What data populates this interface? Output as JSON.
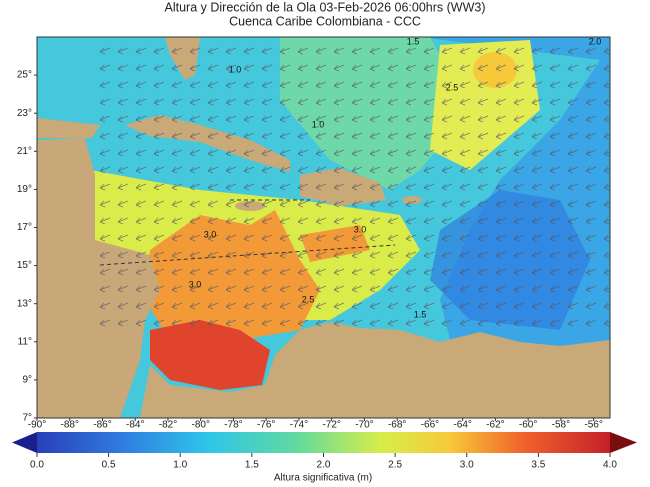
{
  "map": {
    "title": "Altura y Dirección de la Ola 03-Feb-2026 06:00hrs (WW3)",
    "subtitle": "Cuenca Caribe Colombiana - CCC",
    "lat_range": [
      7,
      27
    ],
    "lon_range": [
      -90,
      -55
    ],
    "lat_ticks": [
      {
        "value": 25,
        "label": "25°"
      },
      {
        "value": 23,
        "label": "23°"
      },
      {
        "value": 21,
        "label": "21°"
      },
      {
        "value": 19,
        "label": "19°"
      },
      {
        "value": 17,
        "label": "17°"
      },
      {
        "value": 15,
        "label": "15°"
      },
      {
        "value": 13,
        "label": "13°"
      },
      {
        "value": 11,
        "label": "11°"
      },
      {
        "value": 9,
        "label": "9°"
      },
      {
        "value": 7,
        "label": "7°"
      }
    ],
    "lon_ticks": [
      {
        "value": -90,
        "label": "-90°"
      },
      {
        "value": -88,
        "label": "-88°"
      },
      {
        "value": -86,
        "label": "-86°"
      },
      {
        "value": -84,
        "label": "-84°"
      },
      {
        "value": -82,
        "label": "-82°"
      },
      {
        "value": -80,
        "label": "-80°"
      },
      {
        "value": -78,
        "label": "-78°"
      },
      {
        "value": -76,
        "label": "-76°"
      },
      {
        "value": -74,
        "label": "-74°"
      },
      {
        "value": -72,
        "label": "-72°"
      },
      {
        "value": -70,
        "label": "-70°"
      },
      {
        "value": -68,
        "label": "-68°"
      },
      {
        "value": -66,
        "label": "-66°"
      },
      {
        "value": -64,
        "label": "-64°"
      },
      {
        "value": -62,
        "label": "-62°"
      },
      {
        "value": -60,
        "label": "-60°"
      },
      {
        "value": -58,
        "label": "-58°"
      },
      {
        "value": -56,
        "label": "-56°"
      }
    ],
    "contour_labels": [
      "1.5",
      "2.0",
      "2.5",
      "1.0",
      "1.0",
      "3.0",
      "3.0",
      "3.0",
      "2.5",
      "1.5"
    ],
    "colorbar": {
      "label": "Altura significativa (m)",
      "range": [
        0,
        4
      ],
      "ticks": [
        {
          "value": 0,
          "label": "0.0"
        },
        {
          "value": 0.5,
          "label": "0.5"
        },
        {
          "value": 1,
          "label": "1.0"
        },
        {
          "value": 1.5,
          "label": "1.5"
        },
        {
          "value": 2,
          "label": "2.0"
        },
        {
          "value": 2.5,
          "label": "2.5"
        },
        {
          "value": 3,
          "label": "3.0"
        },
        {
          "value": 3.5,
          "label": "3.5"
        },
        {
          "value": 4,
          "label": "4.0"
        }
      ]
    }
  }
}
